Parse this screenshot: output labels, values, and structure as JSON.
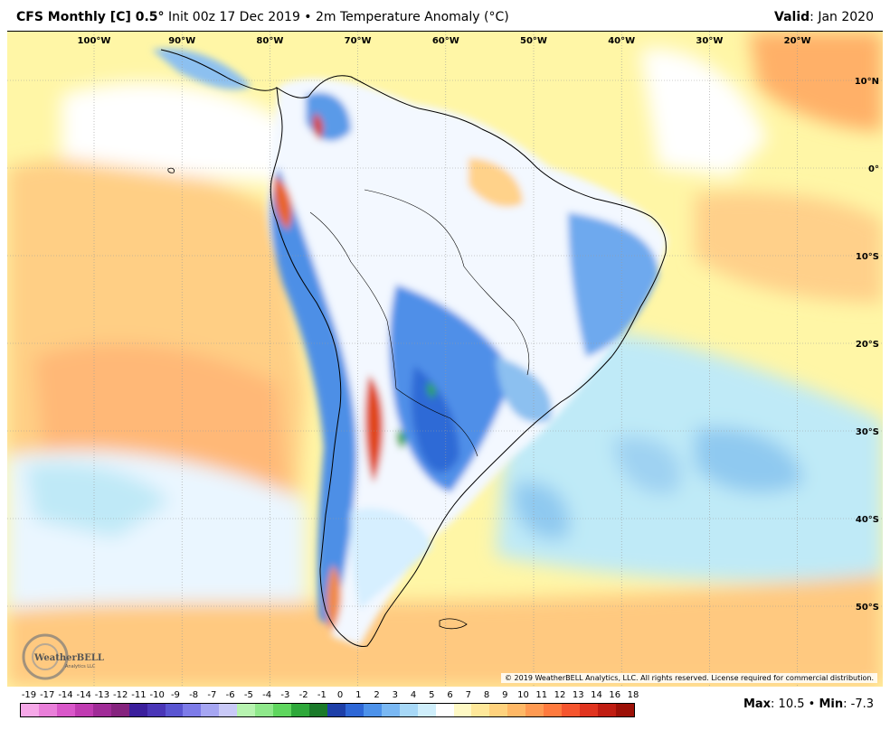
{
  "header": {
    "title_bold": "CFS Monthly [C] 0.5",
    "title_deg": "°",
    "title_rest": " Init 00z 17 Dec 2019 • 2m Temperature Anomaly (°C)",
    "valid_label": "Valid",
    "valid_value": ": Jan 2020"
  },
  "map": {
    "lon_labels": [
      "100°W",
      "90°W",
      "80°W",
      "70°W",
      "60°W",
      "50°W",
      "40°W",
      "30°W",
      "20°W"
    ],
    "lat_labels": [
      "10°N",
      "0°",
      "10°S",
      "20°S",
      "30°S",
      "40°S",
      "50°S"
    ],
    "copyright": "© 2019 WeatherBELL Analytics, LLC. All rights reserved. License required for commercial distribution.",
    "logo_text": "WeatherBELL",
    "logo_subtext": "Analytics LLC"
  },
  "legend": {
    "labels": [
      "-19",
      "-17",
      "-14",
      "-14",
      "-13",
      "-12",
      "-11",
      "-10",
      "-9",
      "-8",
      "-7",
      "-6",
      "-5",
      "-4",
      "-3",
      "-2",
      "-1",
      "0",
      "1",
      "2",
      "3",
      "4",
      "5",
      "6",
      "7",
      "8",
      "9",
      "10",
      "11",
      "12",
      "13",
      "14",
      "16",
      "18"
    ],
    "colors": [
      "#f6a8e8",
      "#e97fd9",
      "#d957c9",
      "#c03bb1",
      "#a02b97",
      "#85237e",
      "#3b1f9c",
      "#4a36b7",
      "#5a55d1",
      "#7d7be8",
      "#a6a6f2",
      "#c9c9f7",
      "#b7f3b0",
      "#8fe88b",
      "#5fd65e",
      "#2ea83a",
      "#1b7a2a",
      "#1e3fa8",
      "#2e67d6",
      "#4d92ea",
      "#7ab8f3",
      "#a7d8f7",
      "#cfeefb",
      "#ffffff",
      "#fff9c4",
      "#ffe89a",
      "#ffd27d",
      "#ffb866",
      "#ff9a52",
      "#ff7a3e",
      "#f5552e",
      "#e0341f",
      "#c01d12",
      "#9c1007"
    ]
  },
  "stats": {
    "max_label": "Max",
    "max_value": ": 10.5",
    "sep": " • ",
    "min_label": "Min",
    "min_value": ": -7.3"
  }
}
